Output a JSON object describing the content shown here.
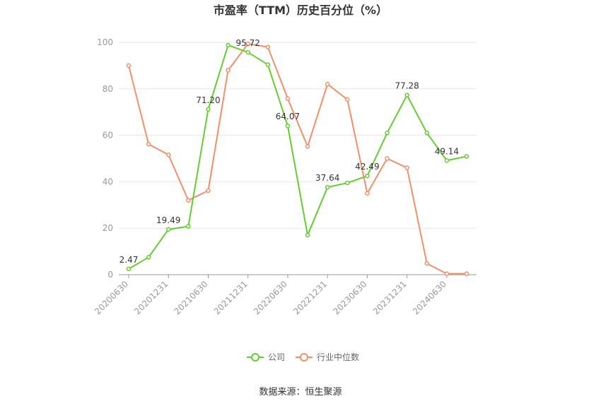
{
  "title": "市盈率（TTM）历史百分位（%）",
  "source": "数据来源：恒生聚源",
  "colors": {
    "company": "#66cc33",
    "industry": "#f0906a",
    "grid": "#e6e6e6",
    "axis": "#999999"
  },
  "chart_data": {
    "type": "line",
    "title": "市盈率（TTM）历史百分位（%）",
    "ylim": [
      0,
      100
    ],
    "yticks": [
      0,
      20,
      40,
      60,
      80,
      100
    ],
    "x": [
      "20200630",
      "20200930",
      "20201231",
      "20210331",
      "20210630",
      "20210930",
      "20211231",
      "20220331",
      "20220630",
      "20220930",
      "20221231",
      "20230331",
      "20230630",
      "20230930",
      "20231231",
      "20240331",
      "20240630",
      "20240930"
    ],
    "xtick_labels": [
      "20200630",
      "20201231",
      "20210630",
      "20211231",
      "20220630",
      "20221231",
      "20230630",
      "20231231",
      "20240630"
    ],
    "legend_position": "bottom",
    "series": [
      {
        "name": "公司",
        "values": [
          2.47,
          7.5,
          19.49,
          20.8,
          71.2,
          98.8,
          95.72,
          90.4,
          64.07,
          17.0,
          37.64,
          39.5,
          42.49,
          61.0,
          77.28,
          61.0,
          49.14,
          50.9
        ],
        "labels": [
          "2.47",
          null,
          "19.49",
          null,
          "71.20",
          null,
          "95.72",
          null,
          "64.07",
          null,
          "37.64",
          null,
          "42.49",
          null,
          "77.28",
          null,
          "49.14",
          null
        ]
      },
      {
        "name": "行业中位数",
        "values": [
          90.0,
          56.2,
          51.6,
          32.0,
          36.2,
          88.0,
          99.4,
          98.0,
          75.8,
          55.2,
          82.0,
          75.4,
          35.0,
          50.0,
          46.0,
          4.8,
          0.4,
          0.4
        ]
      }
    ]
  }
}
